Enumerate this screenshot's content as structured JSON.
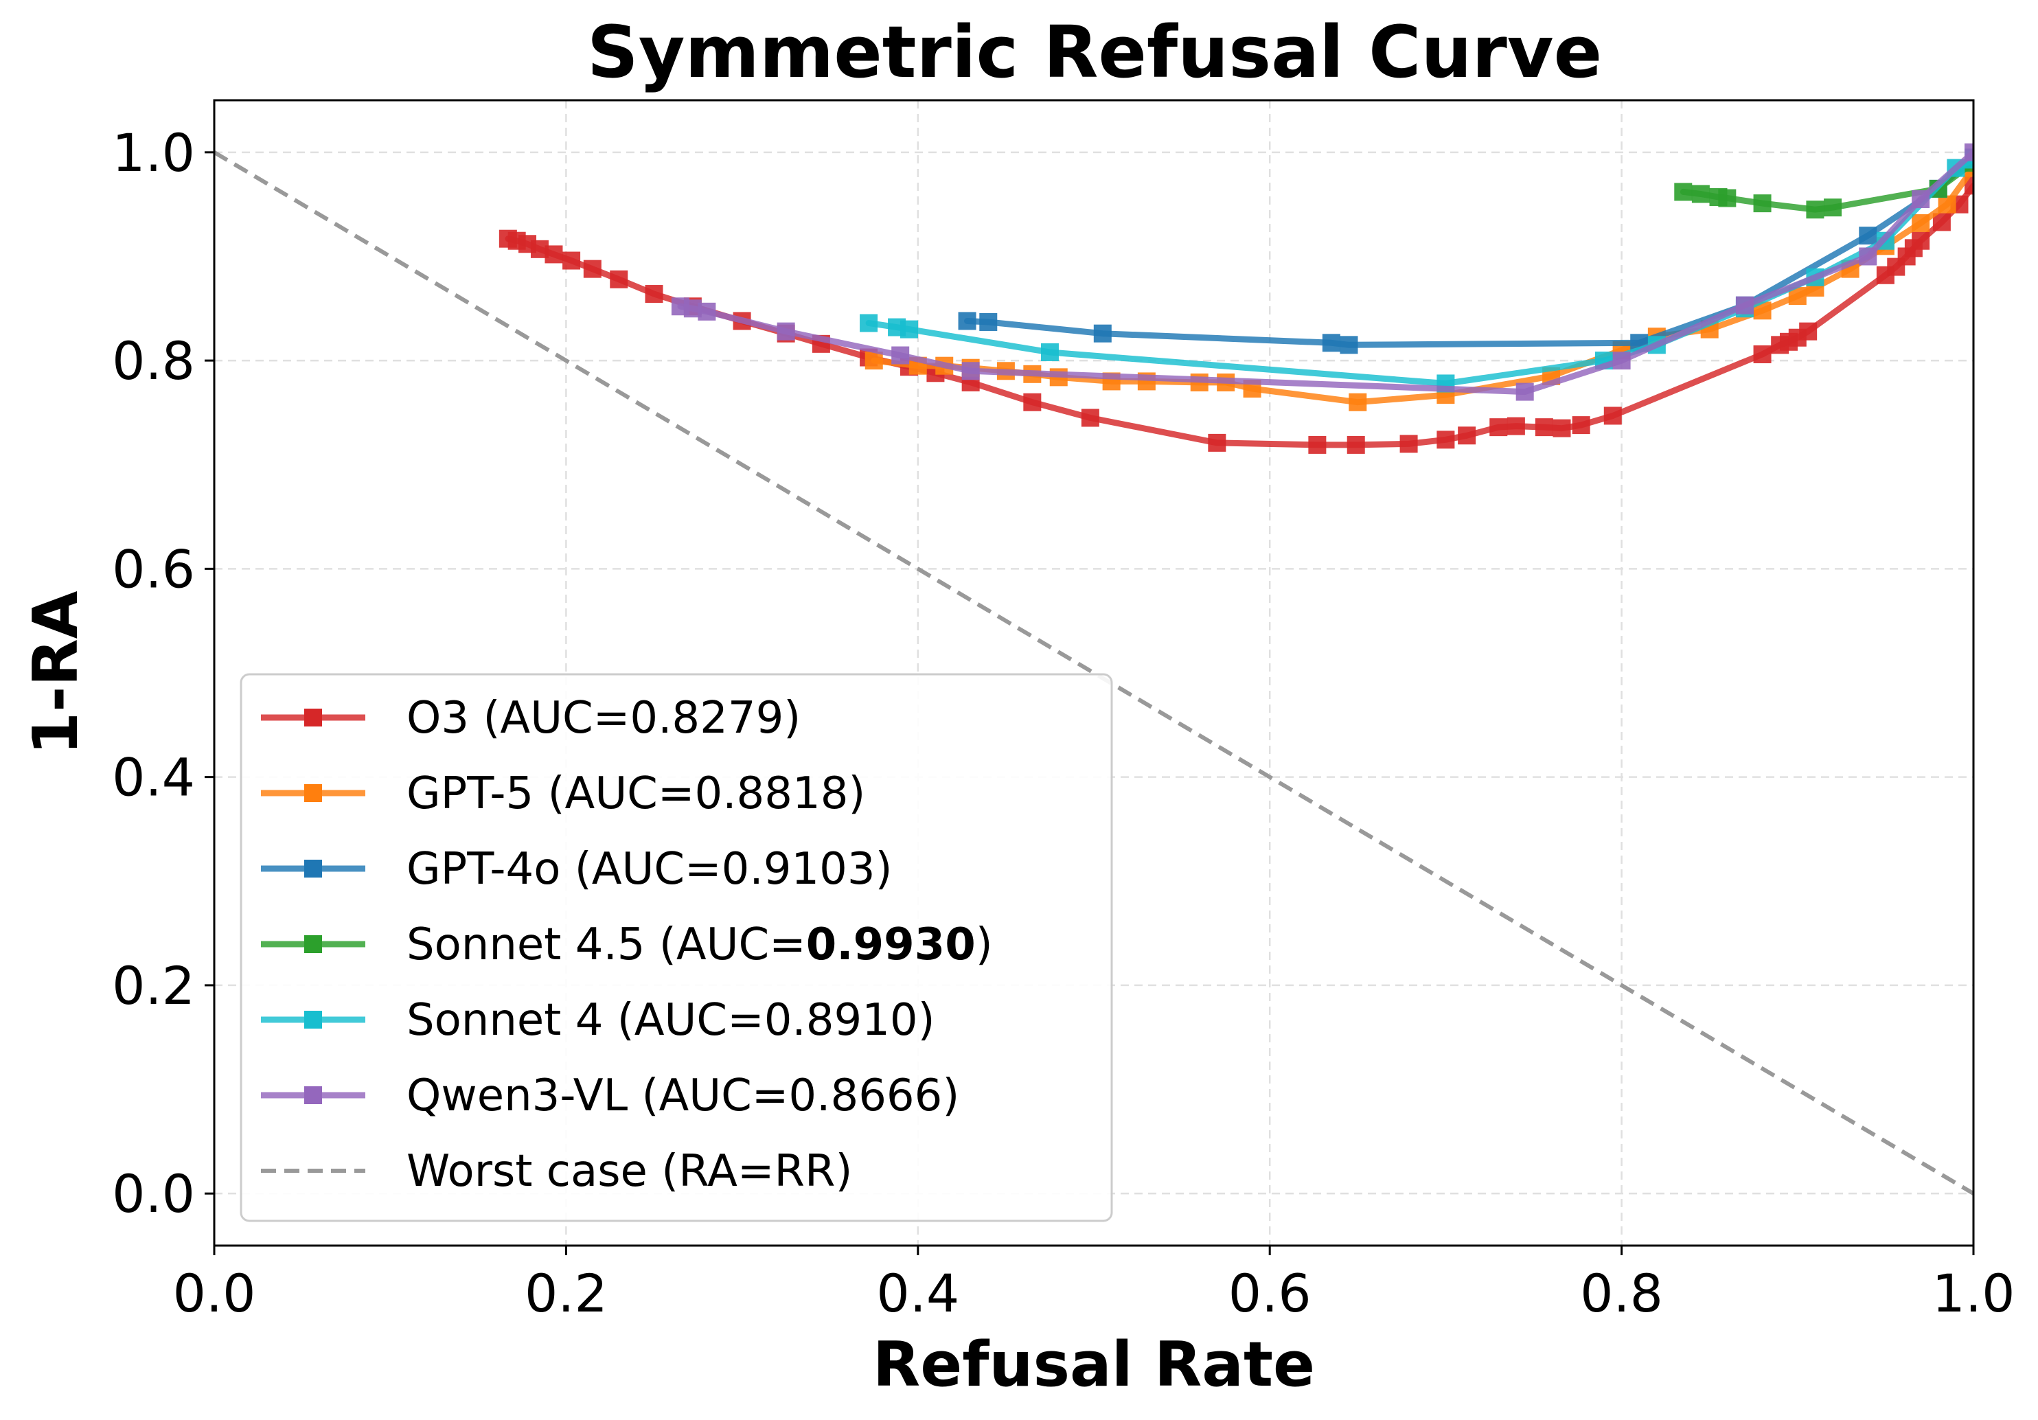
{
  "chart_data": {
    "type": "line",
    "title": "Symmetric Refusal Curve",
    "xlabel": "Refusal Rate",
    "ylabel": "1-RA",
    "xlim": [
      0.0,
      1.0
    ],
    "ylim": [
      -0.05,
      1.05
    ],
    "xticks": [
      "0.0",
      "0.2",
      "0.4",
      "0.6",
      "0.8",
      "1.0"
    ],
    "yticks": [
      "0.0",
      "0.2",
      "0.4",
      "0.6",
      "0.8",
      "1.0"
    ],
    "grid": true,
    "legend_position": "lower-left",
    "series": [
      {
        "name": "O3",
        "auc_prefix": "(AUC=",
        "auc": "0.8279",
        "auc_suffix": ")",
        "auc_bold": false,
        "color": "#d62728",
        "marker": "square",
        "x": [
          0.167,
          0.172,
          0.178,
          0.185,
          0.193,
          0.203,
          0.215,
          0.23,
          0.25,
          0.272,
          0.3,
          0.325,
          0.345,
          0.372,
          0.395,
          0.41,
          0.43,
          0.465,
          0.498,
          0.57,
          0.627,
          0.649,
          0.679,
          0.7,
          0.712,
          0.73,
          0.74,
          0.756,
          0.766,
          0.777,
          0.795,
          0.88,
          0.89,
          0.895,
          0.9,
          0.906,
          0.95,
          0.956,
          0.962,
          0.966,
          0.97,
          0.982,
          0.992,
          1.0
        ],
        "y": [
          0.917,
          0.915,
          0.912,
          0.907,
          0.902,
          0.896,
          0.888,
          0.878,
          0.864,
          0.852,
          0.838,
          0.826,
          0.816,
          0.803,
          0.794,
          0.788,
          0.779,
          0.76,
          0.745,
          0.721,
          0.719,
          0.719,
          0.72,
          0.724,
          0.728,
          0.736,
          0.737,
          0.736,
          0.735,
          0.738,
          0.747,
          0.806,
          0.815,
          0.818,
          0.822,
          0.828,
          0.882,
          0.89,
          0.9,
          0.908,
          0.915,
          0.933,
          0.95,
          0.968
        ]
      },
      {
        "name": "GPT-5",
        "auc_prefix": "(AUC=",
        "auc": "0.8818",
        "auc_suffix": ")",
        "auc_bold": false,
        "color": "#ff7f0e",
        "marker": "square",
        "x": [
          0.375,
          0.4,
          0.415,
          0.43,
          0.45,
          0.465,
          0.48,
          0.51,
          0.53,
          0.56,
          0.575,
          0.59,
          0.65,
          0.7,
          0.76,
          0.8,
          0.82,
          0.85,
          0.88,
          0.9,
          0.91,
          0.93,
          0.95,
          0.97,
          0.985,
          1.0
        ],
        "y": [
          0.8,
          0.795,
          0.795,
          0.793,
          0.79,
          0.787,
          0.784,
          0.78,
          0.78,
          0.779,
          0.779,
          0.773,
          0.76,
          0.767,
          0.785,
          0.81,
          0.823,
          0.83,
          0.848,
          0.862,
          0.87,
          0.888,
          0.91,
          0.932,
          0.95,
          0.985
        ]
      },
      {
        "name": "GPT-4o",
        "auc_prefix": "(AUC=",
        "auc": "0.9103",
        "auc_suffix": ")",
        "auc_bold": false,
        "color": "#1f77b4",
        "marker": "square",
        "x": [
          0.428,
          0.44,
          0.505,
          0.635,
          0.645,
          0.81,
          0.87,
          0.94,
          0.98,
          1.0
        ],
        "y": [
          0.838,
          0.837,
          0.826,
          0.817,
          0.815,
          0.817,
          0.853,
          0.92,
          0.965,
          0.995
        ]
      },
      {
        "name": "Sonnet 4.5",
        "auc_prefix": "(AUC=",
        "auc": "0.9930",
        "auc_suffix": ")",
        "auc_bold": true,
        "color": "#2ca02c",
        "marker": "square",
        "x": [
          0.835,
          0.845,
          0.855,
          0.86,
          0.88,
          0.91,
          0.92,
          0.98,
          1.0
        ],
        "y": [
          0.962,
          0.96,
          0.957,
          0.956,
          0.951,
          0.945,
          0.947,
          0.965,
          0.99
        ]
      },
      {
        "name": "Sonnet 4",
        "auc_prefix": "(AUC=",
        "auc": "0.8910",
        "auc_suffix": ")",
        "auc_bold": false,
        "color": "#17becf",
        "marker": "square",
        "x": [
          0.372,
          0.388,
          0.395,
          0.475,
          0.7,
          0.79,
          0.82,
          0.87,
          0.91,
          0.95,
          0.99,
          1.0
        ],
        "y": [
          0.836,
          0.832,
          0.83,
          0.808,
          0.778,
          0.8,
          0.815,
          0.85,
          0.88,
          0.915,
          0.985,
          0.993
        ]
      },
      {
        "name": "Qwen3-VL",
        "auc_prefix": "(AUC=",
        "auc": "0.8666",
        "auc_suffix": ")",
        "auc_bold": false,
        "color": "#9467bd",
        "marker": "square",
        "x": [
          0.265,
          0.272,
          0.28,
          0.325,
          0.39,
          0.43,
          0.745,
          0.8,
          0.87,
          0.94,
          0.97,
          1.0
        ],
        "y": [
          0.852,
          0.85,
          0.847,
          0.828,
          0.805,
          0.79,
          0.77,
          0.8,
          0.853,
          0.9,
          0.955,
          1.0
        ]
      }
    ],
    "reference_line": {
      "name": "Worst case (RA=RR)",
      "color": "#999999",
      "style": "dashed",
      "x": [
        0.0,
        1.0
      ],
      "y": [
        1.0,
        0.0
      ]
    }
  }
}
